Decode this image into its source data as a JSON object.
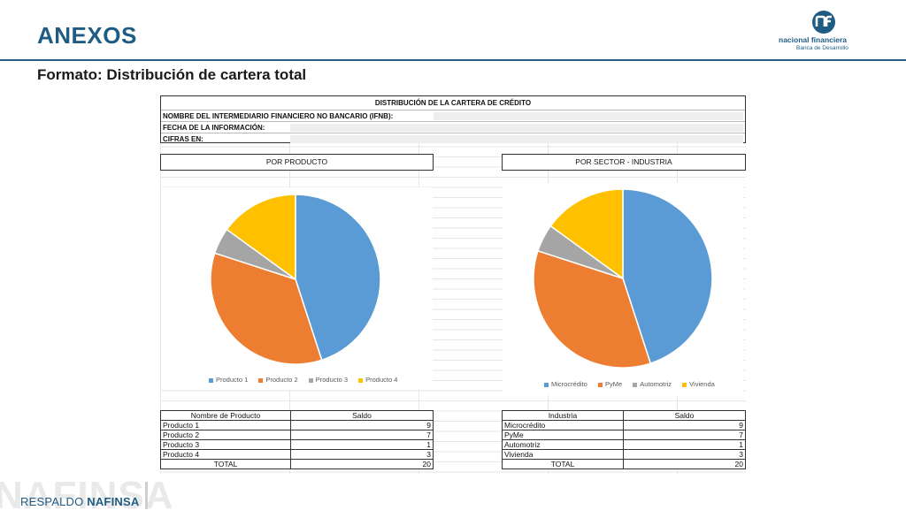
{
  "slide": {
    "title": "ANEXOS",
    "subtitle": "Formato: Distribución de cartera total",
    "footer_light": "RESPALDO ",
    "footer_bold": "NAFINSA",
    "watermark": "NAFINSA"
  },
  "logo": {
    "line1": "nacional financiera",
    "line2": "Banca de Desarrollo",
    "icon": "nafin-logo-icon",
    "color": "#1f5c84"
  },
  "header": {
    "title": "DISTRIBUCIÓN DE LA CARTERA DE CRÉDITO",
    "row1": "NOMBRE DEL INTERMEDIARIO FINANCIERO NO BANCARIO (IFNB):",
    "row2": "FECHA DE LA INFORMACIÓN:",
    "row3": "CIFRAS EN:"
  },
  "colors": {
    "blue": "#5b9bd5",
    "orange": "#ed7d31",
    "gray": "#a5a5a5",
    "yellow": "#ffc000"
  },
  "product_section": {
    "title": "POR PRODUCTO",
    "table": {
      "headers": [
        "Nombre de Producto",
        "Saldo"
      ],
      "rows": [
        {
          "name": "Producto 1",
          "value": "9"
        },
        {
          "name": "Producto 2",
          "value": "7"
        },
        {
          "name": "Producto 3",
          "value": "1"
        },
        {
          "name": "Producto 4",
          "value": "3"
        }
      ],
      "total_label": "TOTAL",
      "total_value": "20"
    }
  },
  "sector_section": {
    "title": "POR SECTOR - INDUSTRIA",
    "table": {
      "headers": [
        "Industria",
        "Saldo"
      ],
      "rows": [
        {
          "name": "Microcrédito",
          "value": "9"
        },
        {
          "name": "PyMe",
          "value": "7"
        },
        {
          "name": "Automotriz",
          "value": "1"
        },
        {
          "name": "Vivienda",
          "value": "3"
        }
      ],
      "total_label": "TOTAL",
      "total_value": "20"
    }
  },
  "chart_data": [
    {
      "type": "pie",
      "title": "",
      "categories": [
        "Producto 1",
        "Producto 2",
        "Producto 3",
        "Producto 4"
      ],
      "values": [
        9,
        7,
        1,
        3
      ],
      "colors": [
        "#5b9bd5",
        "#ed7d31",
        "#a5a5a5",
        "#ffc000"
      ],
      "legend": "bottom"
    },
    {
      "type": "pie",
      "title": "",
      "categories": [
        "Microcrédito",
        "PyMe",
        "Automotriz",
        "Vivienda"
      ],
      "values": [
        9,
        7,
        1,
        3
      ],
      "colors": [
        "#5b9bd5",
        "#ed7d31",
        "#a5a5a5",
        "#ffc000"
      ],
      "legend": "bottom"
    }
  ]
}
